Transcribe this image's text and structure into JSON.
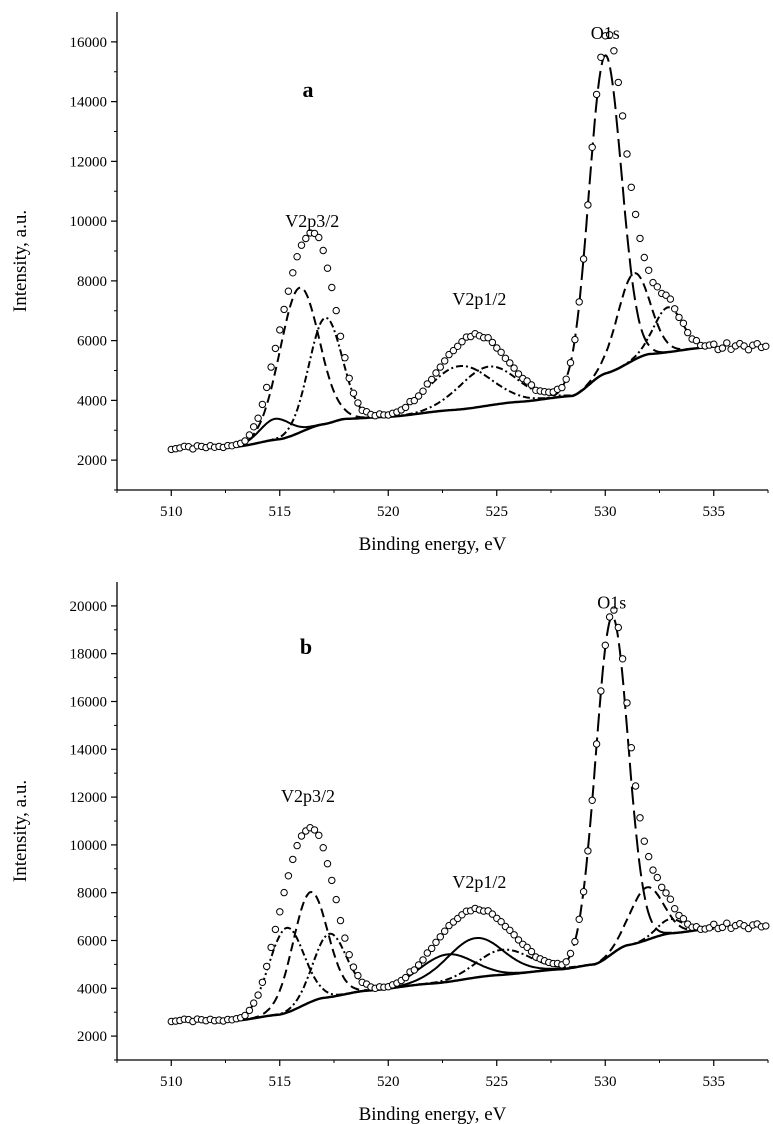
{
  "chart_data": [
    {
      "type": "scatter",
      "panel_label": "a",
      "xlabel": "Binding energy, eV",
      "ylabel": "Intensity, a.u.",
      "xlim": [
        507.5,
        537.5
      ],
      "ylim": [
        1000,
        17000
      ],
      "x_ticks": [
        510,
        515,
        520,
        525,
        530,
        535
      ],
      "y_ticks": [
        2000,
        4000,
        6000,
        8000,
        10000,
        12000,
        14000,
        16000
      ],
      "grid": false,
      "annotations": [
        {
          "text": "V2p3/2",
          "x": 516.5,
          "y": 9800
        },
        {
          "text": "V2p1/2",
          "x": 524.2,
          "y": 7200
        },
        {
          "text": "O1s",
          "x": 530.0,
          "y": 16100
        }
      ],
      "background": {
        "x": [
          510,
          513,
          515,
          517,
          518,
          520,
          523,
          526,
          528.5,
          530,
          532,
          535
        ],
        "y": [
          2400,
          2450,
          2700,
          3200,
          3380,
          3450,
          3680,
          3950,
          4150,
          4900,
          5550,
          5800
        ]
      },
      "components": [
        {
          "style": "dashed",
          "center": 515.9,
          "height": 4850,
          "width": 0.9
        },
        {
          "style": "dash-dot",
          "center": 517.1,
          "height": 3550,
          "width": 0.75
        },
        {
          "style": "solid",
          "center": 514.8,
          "height": 700,
          "width": 0.7
        },
        {
          "style": "dash-dot",
          "center": 523.3,
          "height": 1450,
          "width": 1.4
        },
        {
          "style": "dash-dot",
          "center": 524.6,
          "height": 1300,
          "width": 1.3
        },
        {
          "style": "long-dashed",
          "center": 530.0,
          "height": 10650,
          "width": 0.75
        },
        {
          "style": "dashed",
          "center": 531.3,
          "height": 2900,
          "width": 0.75
        },
        {
          "style": "dash-dot",
          "center": 532.9,
          "height": 1500,
          "width": 0.65
        }
      ],
      "experimental_points": {
        "x_start": 510.0,
        "x_end": 537.5,
        "step": 0.2,
        "extra_baseline_above": 5800
      }
    },
    {
      "type": "scatter",
      "panel_label": "b",
      "xlabel": "Binding energy, eV",
      "ylabel": "Intensity, a.u.",
      "xlim": [
        507.5,
        537.5
      ],
      "ylim": [
        1000,
        21000
      ],
      "x_ticks": [
        510,
        515,
        520,
        525,
        530,
        535
      ],
      "y_ticks": [
        2000,
        4000,
        6000,
        8000,
        10000,
        12000,
        14000,
        16000,
        18000,
        20000
      ],
      "grid": false,
      "annotations": [
        {
          "text": "V2p3/2",
          "x": 516.3,
          "y": 11800
        },
        {
          "text": "V2p1/2",
          "x": 524.2,
          "y": 8200
        },
        {
          "text": "O1s",
          "x": 530.3,
          "y": 19900
        }
      ],
      "background": {
        "x": [
          510,
          513,
          515,
          517,
          519,
          522,
          525,
          528,
          529.5,
          531,
          533,
          535
        ],
        "y": [
          2650,
          2650,
          2900,
          3600,
          3900,
          4200,
          4550,
          4800,
          5000,
          5800,
          6300,
          6500
        ]
      },
      "components": [
        {
          "style": "dash-dot",
          "center": 515.3,
          "height": 3550,
          "width": 0.8
        },
        {
          "style": "dashed",
          "center": 516.4,
          "height": 4600,
          "width": 0.8
        },
        {
          "style": "dash-dot",
          "center": 517.3,
          "height": 2650,
          "width": 0.75
        },
        {
          "style": "solid",
          "center": 522.7,
          "height": 1150,
          "width": 1.2
        },
        {
          "style": "solid",
          "center": 524.0,
          "height": 1650,
          "width": 1.3
        },
        {
          "style": "dash-dot",
          "center": 525.3,
          "height": 1050,
          "width": 1.2
        },
        {
          "style": "long-dashed",
          "center": 530.3,
          "height": 14100,
          "width": 0.75
        },
        {
          "style": "dashed",
          "center": 531.9,
          "height": 2200,
          "width": 0.75
        },
        {
          "style": "dash-dot",
          "center": 533.0,
          "height": 600,
          "width": 0.6
        }
      ],
      "experimental_points": {
        "x_start": 510.0,
        "x_end": 537.5,
        "step": 0.2,
        "extra_baseline_above": 6600
      }
    }
  ]
}
